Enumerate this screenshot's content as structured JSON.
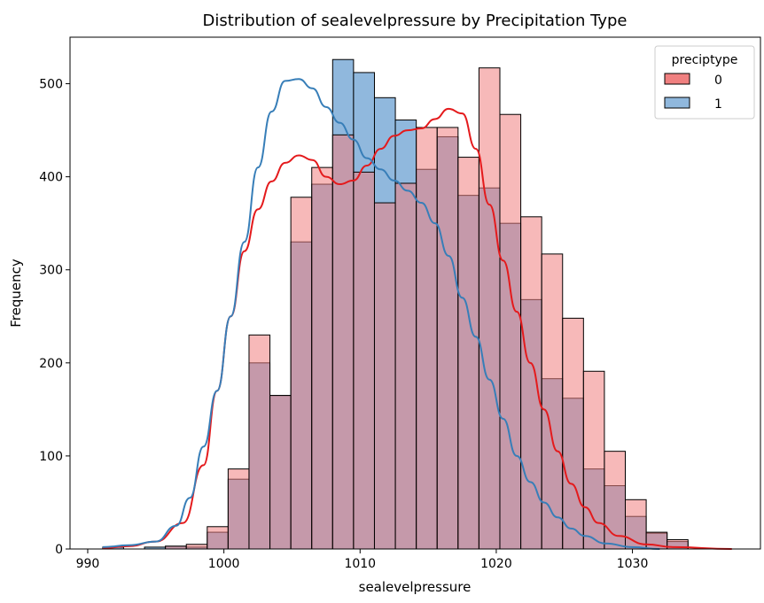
{
  "chart_data": {
    "type": "histogram",
    "title": "Distribution of sealevelpressure by Precipitation Type",
    "xlabel": "sealevelpressure",
    "ylabel": "Frequency",
    "xlim": [
      988.7,
      1039.4
    ],
    "ylim": [
      0,
      550
    ],
    "x_ticks": [
      990,
      1000,
      1010,
      1020,
      1030
    ],
    "y_ticks": [
      0,
      100,
      200,
      300,
      400,
      500
    ],
    "bin_start": 991.1,
    "bin_width": 1.535,
    "legend": {
      "title": "preciptype",
      "position": "top-right"
    },
    "series": [
      {
        "name": "0",
        "color": "#e41a1c",
        "fill": "#f08080",
        "values": [
          0,
          0,
          0,
          3,
          5,
          24,
          86,
          230,
          165,
          378,
          410,
          445,
          405,
          372,
          393,
          453,
          453,
          421,
          517,
          467,
          357,
          317,
          248,
          191,
          105,
          53,
          18,
          10,
          0,
          0,
          0,
          0,
          0
        ]
      },
      {
        "name": "1",
        "color": "#377eb8",
        "fill": "#90b8dd",
        "values": [
          2,
          0,
          2,
          3,
          2,
          18,
          75,
          200,
          165,
          330,
          392,
          526,
          512,
          485,
          461,
          408,
          443,
          380,
          388,
          350,
          268,
          183,
          162,
          86,
          68,
          35,
          17,
          8,
          0,
          0,
          0,
          0,
          0
        ]
      }
    ],
    "kde": [
      {
        "name": "0",
        "color": "#e41a1c",
        "points": [
          [
            991.1,
            1
          ],
          [
            993,
            3
          ],
          [
            995,
            8
          ],
          [
            997,
            28
          ],
          [
            998.5,
            90
          ],
          [
            999.5,
            170
          ],
          [
            1000.5,
            250
          ],
          [
            1001.5,
            320
          ],
          [
            1002.5,
            365
          ],
          [
            1003.5,
            395
          ],
          [
            1004.5,
            415
          ],
          [
            1005.5,
            423
          ],
          [
            1006.5,
            418
          ],
          [
            1007.5,
            400
          ],
          [
            1008.5,
            392
          ],
          [
            1009.5,
            396
          ],
          [
            1010.5,
            412
          ],
          [
            1011.5,
            430
          ],
          [
            1012.5,
            444
          ],
          [
            1013.5,
            450
          ],
          [
            1014.5,
            452
          ],
          [
            1015.5,
            462
          ],
          [
            1016.5,
            473
          ],
          [
            1017.5,
            468
          ],
          [
            1018.5,
            430
          ],
          [
            1019.5,
            370
          ],
          [
            1020.5,
            310
          ],
          [
            1021.5,
            255
          ],
          [
            1022.5,
            200
          ],
          [
            1023.5,
            150
          ],
          [
            1024.5,
            105
          ],
          [
            1025.5,
            70
          ],
          [
            1026.5,
            45
          ],
          [
            1027.5,
            28
          ],
          [
            1029,
            14
          ],
          [
            1031,
            5
          ],
          [
            1033,
            2
          ],
          [
            1037.3,
            0
          ]
        ]
      },
      {
        "name": "1",
        "color": "#377eb8",
        "points": [
          [
            991.1,
            2
          ],
          [
            993,
            4
          ],
          [
            995,
            8
          ],
          [
            996.5,
            25
          ],
          [
            997.5,
            55
          ],
          [
            998.5,
            110
          ],
          [
            999.5,
            170
          ],
          [
            1000.5,
            250
          ],
          [
            1001.5,
            330
          ],
          [
            1002.5,
            410
          ],
          [
            1003.5,
            470
          ],
          [
            1004.5,
            503
          ],
          [
            1005.5,
            505
          ],
          [
            1006.5,
            495
          ],
          [
            1007.5,
            475
          ],
          [
            1008.5,
            458
          ],
          [
            1009.5,
            440
          ],
          [
            1010.5,
            420
          ],
          [
            1011.5,
            408
          ],
          [
            1012.5,
            396
          ],
          [
            1013.5,
            385
          ],
          [
            1014.5,
            372
          ],
          [
            1015.5,
            350
          ],
          [
            1016.5,
            315
          ],
          [
            1017.5,
            270
          ],
          [
            1018.5,
            228
          ],
          [
            1019.5,
            182
          ],
          [
            1020.5,
            140
          ],
          [
            1021.5,
            100
          ],
          [
            1022.5,
            72
          ],
          [
            1023.5,
            50
          ],
          [
            1024.5,
            34
          ],
          [
            1025.5,
            22
          ],
          [
            1026.5,
            14
          ],
          [
            1028,
            6
          ],
          [
            1030,
            2
          ],
          [
            1032,
            0
          ]
        ]
      }
    ]
  }
}
